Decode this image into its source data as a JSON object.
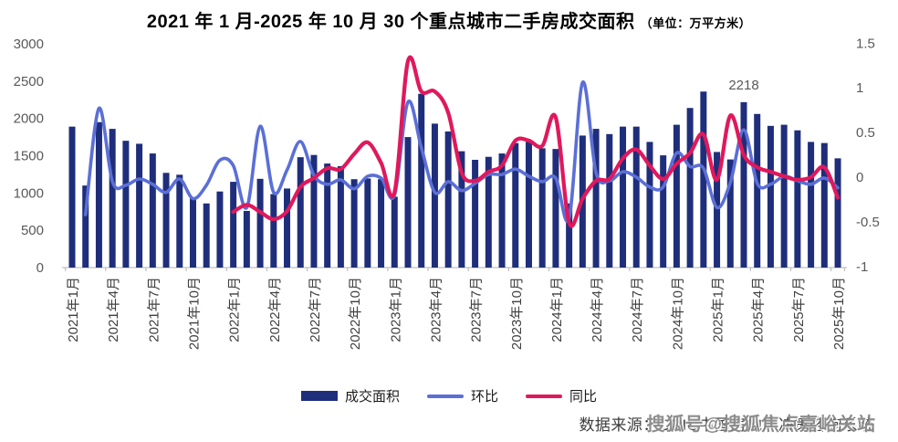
{
  "title": {
    "main": "2021 年 1 月-2025 年 10 月 30 个重点城市二手房成交面积",
    "unit": "（单位：万平方米）"
  },
  "legend": {
    "items": [
      {
        "label": "成交面积",
        "swatch": "bar",
        "color": "#1F2E7B"
      },
      {
        "label": "环比",
        "swatch": "line",
        "color": "#5B6FD6"
      },
      {
        "label": "同比",
        "swatch": "line",
        "color": "#E0185C"
      }
    ]
  },
  "source": {
    "text": "数据来源：CRIC中国房地产决策咨询系统"
  },
  "watermark": {
    "text": "搜狐号@搜狐焦点嘉峪关站"
  },
  "chart_data": {
    "type": "bar",
    "subtype": "bar-line-combo",
    "title": "2021年1月-2025年10月 30个重点城市二手房成交面积（单位：万平方米）",
    "grid": false,
    "legend_position": "bottom",
    "categories": [
      "2021年1月",
      "2021年2月",
      "2021年3月",
      "2021年4月",
      "2021年5月",
      "2021年6月",
      "2021年7月",
      "2021年8月",
      "2021年9月",
      "2021年10月",
      "2021年11月",
      "2021年12月",
      "2022年1月",
      "2022年2月",
      "2022年3月",
      "2022年4月",
      "2022年5月",
      "2022年6月",
      "2022年7月",
      "2022年8月",
      "2022年9月",
      "2022年10月",
      "2022年11月",
      "2022年12月",
      "2023年1月",
      "2023年2月",
      "2023年3月",
      "2023年4月",
      "2023年5月",
      "2023年6月",
      "2023年7月",
      "2023年8月",
      "2023年9月",
      "2023年10月",
      "2023年11月",
      "2023年12月",
      "2024年1月",
      "2024年2月",
      "2024年3月",
      "2024年4月",
      "2024年5月",
      "2024年6月",
      "2024年7月",
      "2024年8月",
      "2024年9月",
      "2024年10月",
      "2024年11月",
      "2024年12月",
      "2025年1月",
      "2025年2月",
      "2025年3月",
      "2025年4月",
      "2025年5月",
      "2025年6月",
      "2025年7月",
      "2025年8月",
      "2025年9月",
      "2025年10月"
    ],
    "x_tick_labels": [
      "2021年1月",
      "2021年4月",
      "2021年7月",
      "2021年10月",
      "2022年1月",
      "2022年4月",
      "2022年7月",
      "2022年10月",
      "2023年1月",
      "2023年4月",
      "2023年7月",
      "2023年10月",
      "2024年1月",
      "2024年4月",
      "2024年7月",
      "2024年10月",
      "2025年1月",
      "2025年4月",
      "2025年7月",
      "2025年10月"
    ],
    "left_axis": {
      "min": 0,
      "max": 3000,
      "step": 500,
      "ticks": [
        0,
        500,
        1000,
        1500,
        2000,
        2500,
        3000
      ],
      "unit": "万平方米"
    },
    "right_axis": {
      "min": -1,
      "max": 1.5,
      "step": 0.5,
      "ticks": [
        -1,
        -0.5,
        0,
        0.5,
        1,
        1.5
      ]
    },
    "series": [
      {
        "name": "成交面积",
        "type": "bar",
        "axis": "left",
        "color": "#1F2E7B",
        "values": [
          1890,
          1100,
          1950,
          1860,
          1700,
          1660,
          1530,
          1270,
          1245,
          940,
          860,
          1020,
          1150,
          760,
          1190,
          985,
          1060,
          1480,
          1510,
          1395,
          1360,
          1185,
          1195,
          1185,
          950,
          1750,
          2330,
          1930,
          1825,
          1560,
          1445,
          1485,
          1530,
          1670,
          1685,
          1600,
          1590,
          860,
          1770,
          1860,
          1790,
          1890,
          1890,
          1685,
          1505,
          1915,
          2140,
          2360,
          1550,
          1450,
          2218,
          2060,
          1900,
          1915,
          1840,
          1685,
          1670,
          1465
        ]
      },
      {
        "name": "环比",
        "type": "line",
        "axis": "right",
        "color": "#5B6FD6",
        "values": [
          null,
          -0.42,
          0.77,
          -0.05,
          -0.09,
          -0.02,
          -0.08,
          -0.17,
          -0.02,
          -0.24,
          -0.09,
          0.19,
          0.13,
          -0.34,
          0.57,
          -0.17,
          0.08,
          0.4,
          0.02,
          -0.08,
          -0.03,
          -0.13,
          0.01,
          -0.01,
          -0.2,
          0.84,
          0.33,
          -0.17,
          -0.05,
          -0.15,
          -0.07,
          0.03,
          0.03,
          0.09,
          0.01,
          -0.05,
          -0.01,
          -0.46,
          1.06,
          0.05,
          -0.04,
          0.06,
          0.0,
          -0.11,
          -0.11,
          0.27,
          0.12,
          0.1,
          -0.34,
          -0.06,
          0.53,
          -0.07,
          -0.08,
          0.01,
          -0.04,
          -0.08,
          -0.01,
          -0.12
        ]
      },
      {
        "name": "同比",
        "type": "line",
        "axis": "right",
        "color": "#E0185C",
        "values": [
          null,
          null,
          null,
          null,
          null,
          null,
          null,
          null,
          null,
          null,
          null,
          null,
          -0.39,
          -0.31,
          -0.39,
          -0.47,
          -0.38,
          -0.11,
          -0.01,
          0.1,
          0.09,
          0.26,
          0.39,
          0.16,
          -0.17,
          1.3,
          0.96,
          0.96,
          0.72,
          0.05,
          -0.04,
          0.06,
          0.13,
          0.41,
          0.41,
          0.35,
          0.67,
          -0.51,
          -0.24,
          -0.04,
          -0.02,
          0.21,
          0.31,
          0.13,
          -0.02,
          0.15,
          0.27,
          0.48,
          -0.03,
          0.69,
          0.25,
          0.11,
          0.06,
          0.01,
          -0.03,
          0.0,
          0.11,
          -0.23
        ]
      }
    ],
    "annotation": {
      "text": "2218",
      "category": "2025年3月",
      "value": 2218
    },
    "colors": {
      "bar": "#1F2E7B",
      "mom_line": "#5B6FD6",
      "yoy_line": "#E0185C",
      "axis_text": "#595959",
      "x_label_text": "#404040",
      "axis_line": "#BFBFBF",
      "annotation_text": "#595959"
    }
  }
}
